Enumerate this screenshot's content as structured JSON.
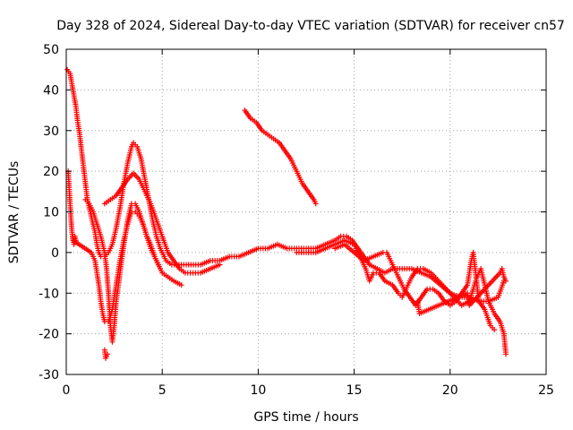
{
  "chart_data": {
    "type": "scatter",
    "title": "Day 328 of 2024, Sidereal Day-to-day VTEC variation (SDTVAR) for receiver cn57",
    "xlabel": "GPS time / hours",
    "ylabel": "SDTVAR / TECUs",
    "xlim": [
      0,
      25
    ],
    "ylim": [
      -30,
      50
    ],
    "xticks": [
      "0",
      "5",
      "10",
      "15",
      "20",
      "25"
    ],
    "yticks": [
      "-30",
      "-20",
      "-10",
      "0",
      "10",
      "20",
      "30",
      "40",
      "50"
    ],
    "grid": true,
    "marker": "+",
    "color": "#ff0000",
    "series": [
      {
        "name": "s1",
        "points": [
          [
            0.05,
            45
          ],
          [
            0.2,
            44
          ],
          [
            0.35,
            40
          ],
          [
            0.5,
            36
          ],
          [
            0.6,
            32
          ],
          [
            0.7,
            29
          ],
          [
            0.8,
            25
          ],
          [
            0.9,
            21
          ],
          [
            1.0,
            17
          ],
          [
            1.1,
            13
          ],
          [
            1.2,
            11
          ],
          [
            1.35,
            8
          ],
          [
            1.5,
            5
          ],
          [
            1.6,
            2
          ],
          [
            1.7,
            0
          ],
          [
            1.8,
            -1
          ],
          [
            2.0,
            -1
          ],
          [
            2.2,
            0
          ],
          [
            2.4,
            2
          ],
          [
            2.6,
            6
          ],
          [
            2.8,
            11
          ],
          [
            3.0,
            17
          ],
          [
            3.2,
            22
          ],
          [
            3.4,
            26
          ],
          [
            3.5,
            27
          ],
          [
            3.7,
            26
          ],
          [
            3.9,
            23
          ],
          [
            4.1,
            18
          ],
          [
            4.3,
            13
          ],
          [
            4.5,
            8
          ],
          [
            4.7,
            4
          ],
          [
            4.9,
            1
          ],
          [
            5.2,
            -2
          ],
          [
            5.5,
            -3
          ],
          [
            6.0,
            -3
          ],
          [
            6.5,
            -3
          ],
          [
            7.0,
            -3
          ],
          [
            7.5,
            -2
          ],
          [
            8.0,
            -2
          ],
          [
            8.5,
            -1
          ],
          [
            9.0,
            -1
          ],
          [
            9.5,
            0
          ],
          [
            10.0,
            1
          ],
          [
            10.5,
            1
          ],
          [
            11.0,
            2
          ],
          [
            11.5,
            1
          ],
          [
            12.0,
            1
          ],
          [
            12.5,
            1
          ],
          [
            13.0,
            1
          ],
          [
            13.5,
            2
          ],
          [
            14.0,
            3
          ],
          [
            14.3,
            4
          ],
          [
            14.6,
            4
          ],
          [
            14.9,
            3
          ],
          [
            15.2,
            1
          ],
          [
            15.5,
            -1
          ],
          [
            15.8,
            -3
          ],
          [
            16.2,
            -4
          ],
          [
            16.6,
            -5
          ],
          [
            17.0,
            -4
          ],
          [
            17.5,
            -4
          ],
          [
            18.0,
            -4
          ],
          [
            18.5,
            -5
          ],
          [
            19.0,
            -6
          ],
          [
            19.5,
            -8
          ],
          [
            20.0,
            -10
          ],
          [
            20.5,
            -11
          ],
          [
            21.0,
            -11
          ],
          [
            21.5,
            -12
          ],
          [
            22.0,
            -12
          ],
          [
            22.5,
            -11
          ],
          [
            22.8,
            -7
          ]
        ]
      },
      {
        "name": "s2",
        "points": [
          [
            0.1,
            20
          ],
          [
            0.15,
            16
          ],
          [
            0.2,
            12
          ],
          [
            0.25,
            8
          ],
          [
            0.3,
            5
          ],
          [
            0.35,
            3
          ],
          [
            1.3,
            0
          ],
          [
            1.5,
            -2
          ],
          [
            1.6,
            -5
          ],
          [
            1.7,
            -8
          ],
          [
            1.8,
            -12
          ],
          [
            1.9,
            -15
          ],
          [
            2.0,
            -17
          ],
          [
            2.2,
            -17
          ],
          [
            2.4,
            -14
          ],
          [
            2.6,
            -8
          ],
          [
            2.8,
            -2
          ],
          [
            3.0,
            3
          ],
          [
            3.2,
            7
          ],
          [
            3.4,
            10
          ],
          [
            3.6,
            10
          ],
          [
            3.8,
            9
          ],
          [
            4.0,
            7
          ],
          [
            4.2,
            4
          ],
          [
            4.4,
            2
          ],
          [
            4.6,
            -1
          ],
          [
            4.8,
            -3
          ],
          [
            5.0,
            -5
          ],
          [
            5.3,
            -6
          ],
          [
            5.6,
            -7
          ],
          [
            6.0,
            -8
          ]
        ]
      },
      {
        "name": "s3",
        "points": [
          [
            1.0,
            13
          ],
          [
            1.2,
            12
          ],
          [
            1.4,
            10
          ],
          [
            1.6,
            7
          ],
          [
            1.8,
            4
          ],
          [
            2.0,
            0
          ],
          [
            2.1,
            -4
          ],
          [
            2.2,
            -10
          ],
          [
            2.3,
            -18
          ],
          [
            2.4,
            -22
          ],
          [
            2.5,
            -18
          ],
          [
            2.6,
            -12
          ],
          [
            2.8,
            -5
          ],
          [
            3.0,
            2
          ],
          [
            3.2,
            8
          ],
          [
            3.4,
            12
          ],
          [
            3.6,
            12
          ],
          [
            3.8,
            10
          ],
          [
            4.0,
            7
          ],
          [
            4.2,
            4
          ],
          [
            4.4,
            1
          ],
          [
            4.6,
            -1
          ],
          [
            4.8,
            -3
          ]
        ]
      },
      {
        "name": "s4",
        "points": [
          [
            2.0,
            12
          ],
          [
            2.3,
            13
          ],
          [
            2.6,
            14
          ],
          [
            2.9,
            16
          ],
          [
            3.2,
            18
          ],
          [
            3.5,
            19.5
          ],
          [
            3.8,
            18
          ],
          [
            4.1,
            15
          ],
          [
            4.4,
            12
          ],
          [
            4.7,
            8
          ],
          [
            5.0,
            4
          ],
          [
            5.3,
            0
          ],
          [
            5.6,
            -2
          ],
          [
            5.9,
            -4
          ],
          [
            6.2,
            -5
          ],
          [
            6.6,
            -5
          ],
          [
            7.0,
            -5
          ],
          [
            7.5,
            -4
          ],
          [
            8.0,
            -3
          ]
        ]
      },
      {
        "name": "s5",
        "points": [
          [
            0.35,
            4
          ],
          [
            0.4,
            2
          ],
          [
            0.45,
            4
          ],
          [
            0.5,
            3
          ],
          [
            2.0,
            -24
          ],
          [
            2.05,
            -26
          ],
          [
            2.15,
            -25
          ]
        ]
      },
      {
        "name": "s6",
        "points": [
          [
            9.3,
            35
          ],
          [
            9.6,
            33
          ],
          [
            9.9,
            32
          ],
          [
            10.2,
            30
          ],
          [
            10.5,
            29
          ],
          [
            10.8,
            28
          ],
          [
            11.1,
            27
          ],
          [
            11.4,
            25
          ],
          [
            11.7,
            23
          ],
          [
            12.0,
            20
          ],
          [
            12.3,
            17
          ],
          [
            12.6,
            15
          ],
          [
            12.9,
            13
          ],
          [
            13.0,
            12
          ]
        ]
      },
      {
        "name": "s7",
        "points": [
          [
            12.0,
            0
          ],
          [
            12.5,
            0
          ],
          [
            13.0,
            0
          ],
          [
            13.5,
            1
          ],
          [
            14.0,
            2
          ],
          [
            14.5,
            3
          ],
          [
            15.0,
            2
          ],
          [
            15.3,
            -1
          ],
          [
            15.6,
            -4
          ],
          [
            15.8,
            -7
          ],
          [
            16.0,
            -5
          ],
          [
            16.3,
            -5
          ],
          [
            16.6,
            -7
          ],
          [
            17.0,
            -8
          ],
          [
            17.3,
            -10
          ],
          [
            17.5,
            -11
          ],
          [
            17.8,
            -8
          ],
          [
            18.0,
            -6
          ],
          [
            18.3,
            -4
          ],
          [
            18.6,
            -4
          ],
          [
            19.0,
            -5
          ],
          [
            19.4,
            -7
          ],
          [
            19.8,
            -9
          ],
          [
            20.2,
            -11
          ],
          [
            20.6,
            -13
          ],
          [
            21.0,
            -12
          ],
          [
            21.2,
            -9
          ],
          [
            21.4,
            -6
          ],
          [
            21.6,
            -4
          ],
          [
            21.8,
            -8
          ],
          [
            22.0,
            -12
          ],
          [
            22.3,
            -15
          ],
          [
            22.6,
            -17
          ],
          [
            22.8,
            -20
          ],
          [
            22.9,
            -25
          ]
        ]
      },
      {
        "name": "s8",
        "points": [
          [
            14.0,
            1
          ],
          [
            14.5,
            2
          ],
          [
            15.0,
            0
          ],
          [
            15.5,
            -2
          ],
          [
            16.0,
            -1
          ],
          [
            16.5,
            0
          ],
          [
            16.7,
            0
          ],
          [
            17.0,
            -3
          ],
          [
            17.3,
            -6
          ],
          [
            17.6,
            -9
          ],
          [
            17.9,
            -11
          ],
          [
            18.2,
            -13
          ],
          [
            18.5,
            -11
          ],
          [
            18.8,
            -9
          ],
          [
            19.1,
            -9
          ],
          [
            19.4,
            -10
          ],
          [
            19.7,
            -12
          ],
          [
            20.0,
            -13
          ],
          [
            20.3,
            -12
          ],
          [
            20.6,
            -10
          ],
          [
            20.9,
            -8
          ],
          [
            21.0,
            -5
          ],
          [
            21.1,
            -2
          ],
          [
            21.2,
            0
          ],
          [
            21.5,
            -12
          ],
          [
            21.8,
            -14
          ],
          [
            22.1,
            -18
          ],
          [
            22.3,
            -19
          ]
        ]
      },
      {
        "name": "s9",
        "points": [
          [
            18.3,
            -12
          ],
          [
            18.4,
            -15
          ],
          [
            20.9,
            -10
          ],
          [
            21.0,
            -13
          ],
          [
            22.6,
            -5
          ],
          [
            22.7,
            -4
          ],
          [
            22.8,
            -6
          ],
          [
            22.9,
            -7
          ]
        ]
      }
    ]
  }
}
